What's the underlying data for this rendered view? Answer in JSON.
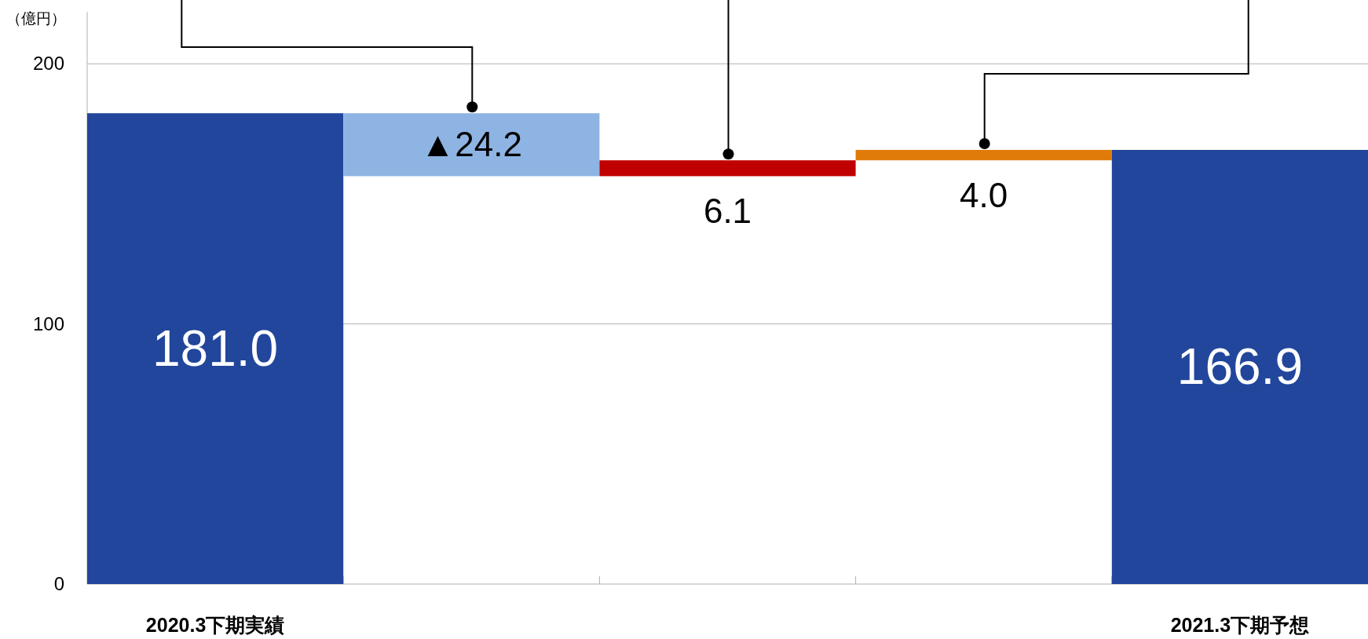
{
  "chart_data": {
    "type": "bar",
    "ylabel": "（億円）",
    "categories": [
      "2020.3下期実績",
      null,
      null,
      null,
      "2021.3下期予想"
    ],
    "values": [
      181.0,
      -24.2,
      6.1,
      4.0,
      166.9
    ],
    "base": [
      0,
      181.0,
      156.8,
      162.9,
      0
    ],
    "colors": [
      "#21469b",
      "#8eb4e3",
      "#c00000",
      "#e07b0a",
      "#21469b"
    ],
    "value_labels": [
      "181.0",
      "▲24.2",
      "6.1",
      "4.0",
      "166.9"
    ],
    "ylim": [
      0,
      220
    ],
    "yticks": [
      0,
      100,
      200
    ],
    "grid": "y"
  }
}
